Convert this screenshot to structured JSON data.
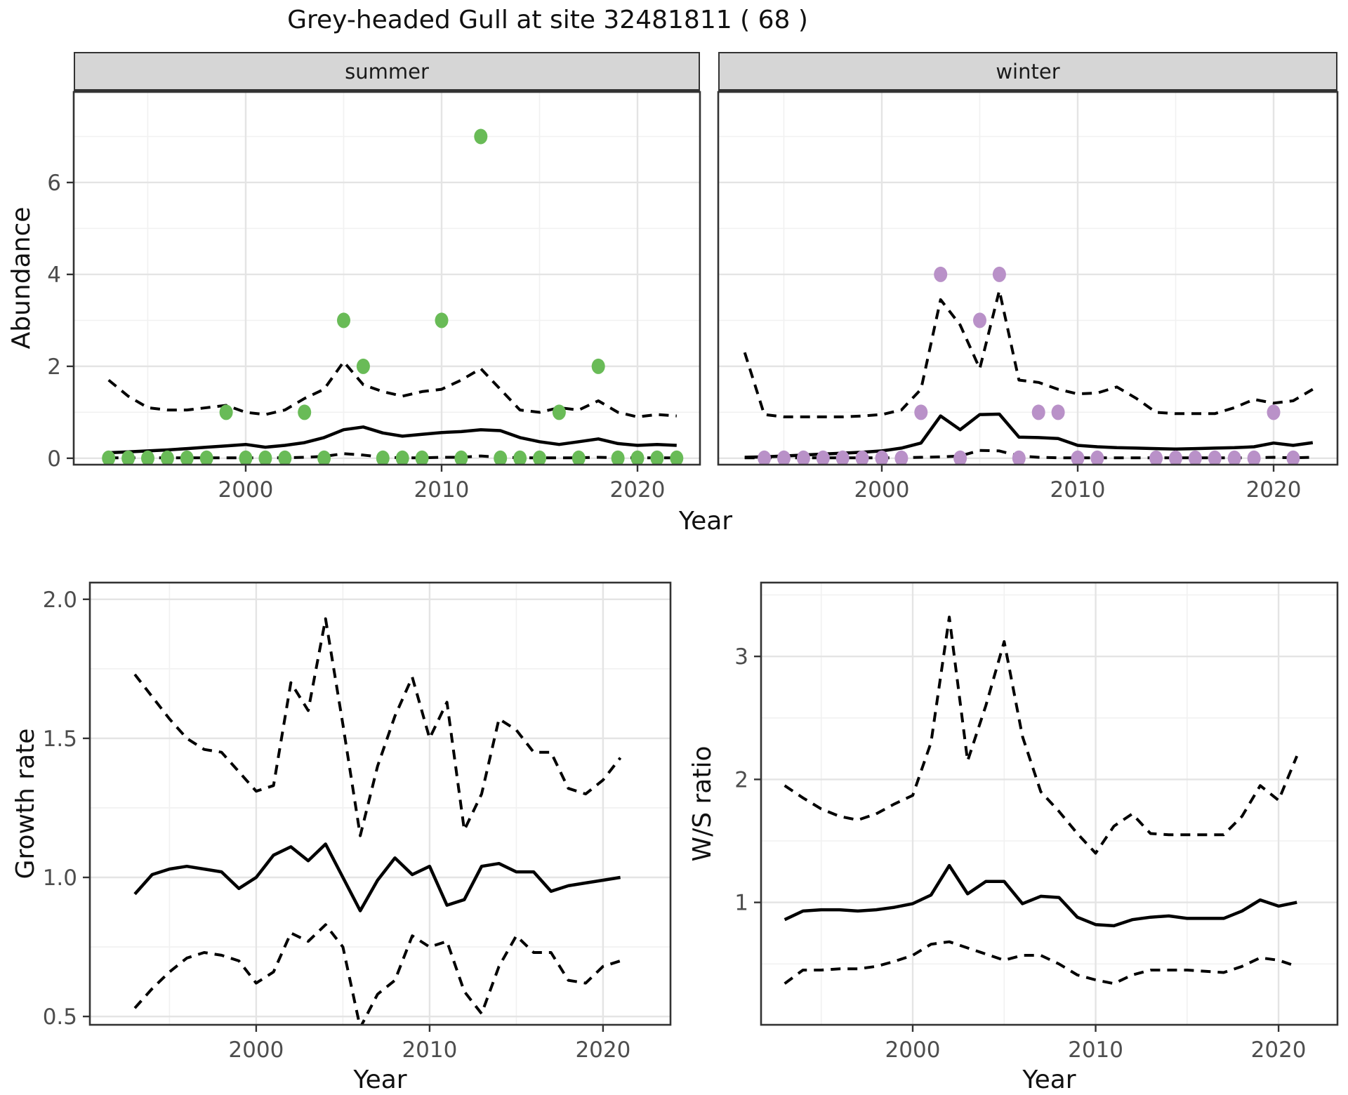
{
  "title": "Grey-headed Gull at site 32481811 ( 68 )",
  "colors": {
    "summer_point": "#69BB57",
    "winter_point": "#B991C8",
    "line": "#000000",
    "strip_bg": "#D6D6D6",
    "panel_border": "#333333",
    "grid_major": "#E4E4E4",
    "grid_minor": "#F1F1F1",
    "tick_text": "#4D4D4D"
  },
  "chart_data": [
    {
      "id": "abundance_summer",
      "type": "line",
      "facet_label": "summer",
      "xlabel": "Year",
      "ylabel": "Abundance",
      "xlim": [
        1991.22,
        2023.19
      ],
      "ylim": [
        -0.14,
        7.97
      ],
      "x_major_ticks": [
        2000,
        2010,
        2020
      ],
      "x_tick_labels": [
        "2000",
        "2010",
        "2020"
      ],
      "x_minor_ticks": [
        1995,
        2005,
        2015
      ],
      "y_major_ticks": [
        0,
        2,
        4,
        6
      ],
      "y_tick_labels": [
        "0",
        "2",
        "4",
        "6"
      ],
      "y_minor_ticks": [
        1,
        3,
        5,
        7
      ],
      "show_y_labels": true,
      "grid": true,
      "legend": "none",
      "x": [
        1993,
        1994,
        1995,
        1996,
        1997,
        1998,
        1999,
        2000,
        2001,
        2002,
        2003,
        2004,
        2005,
        2006,
        2007,
        2008,
        2009,
        2010,
        2011,
        2012,
        2013,
        2014,
        2015,
        2016,
        2017,
        2018,
        2019,
        2020,
        2021,
        2022
      ],
      "series": [
        {
          "name": "mean",
          "style": "solid",
          "values": [
            0.12,
            0.14,
            0.16,
            0.18,
            0.21,
            0.24,
            0.27,
            0.3,
            0.24,
            0.28,
            0.34,
            0.45,
            0.62,
            0.68,
            0.55,
            0.48,
            0.52,
            0.56,
            0.58,
            0.62,
            0.6,
            0.45,
            0.36,
            0.3,
            0.36,
            0.42,
            0.32,
            0.28,
            0.3,
            0.28
          ]
        },
        {
          "name": "upper_ci",
          "style": "dashed",
          "values": [
            1.7,
            1.35,
            1.1,
            1.05,
            1.05,
            1.1,
            1.15,
            1.0,
            0.95,
            1.05,
            1.3,
            1.5,
            2.1,
            1.6,
            1.45,
            1.35,
            1.45,
            1.5,
            1.7,
            1.95,
            1.5,
            1.05,
            1.0,
            1.1,
            1.05,
            1.25,
            1.0,
            0.9,
            0.95,
            0.92
          ]
        },
        {
          "name": "lower_ci",
          "style": "dashed",
          "values": [
            0.01,
            0.01,
            0.01,
            0.01,
            0.01,
            0.01,
            0.01,
            0.01,
            0.01,
            0.01,
            0.02,
            0.04,
            0.1,
            0.07,
            0.02,
            0.01,
            0.01,
            0.02,
            0.02,
            0.05,
            0.02,
            0.01,
            0.01,
            0.01,
            0.01,
            0.02,
            0.01,
            0.01,
            0.01,
            0.01
          ]
        }
      ],
      "points": {
        "color_key": "summer_point",
        "data": [
          [
            1993,
            0
          ],
          [
            1994,
            0
          ],
          [
            1995,
            0
          ],
          [
            1996,
            0
          ],
          [
            1997,
            0
          ],
          [
            1998,
            0
          ],
          [
            1999,
            1
          ],
          [
            2000,
            0
          ],
          [
            2001,
            0
          ],
          [
            2002,
            0
          ],
          [
            2003,
            1
          ],
          [
            2004,
            0
          ],
          [
            2005,
            3
          ],
          [
            2006,
            2
          ],
          [
            2007,
            0
          ],
          [
            2008,
            0
          ],
          [
            2009,
            0
          ],
          [
            2010,
            3
          ],
          [
            2011,
            0
          ],
          [
            2012,
            7
          ],
          [
            2013,
            0
          ],
          [
            2014,
            0
          ],
          [
            2015,
            0
          ],
          [
            2016,
            1
          ],
          [
            2017,
            0
          ],
          [
            2018,
            2
          ],
          [
            2019,
            0
          ],
          [
            2020,
            0
          ],
          [
            2021,
            0
          ],
          [
            2022,
            0
          ]
        ]
      }
    },
    {
      "id": "abundance_winter",
      "type": "line",
      "facet_label": "winter",
      "xlabel": "Year",
      "ylabel": "Abundance",
      "xlim": [
        1991.65,
        2023.26
      ],
      "ylim": [
        -0.14,
        7.97
      ],
      "x_major_ticks": [
        2000,
        2010,
        2020
      ],
      "x_tick_labels": [
        "2000",
        "2010",
        "2020"
      ],
      "x_minor_ticks": [
        1995,
        2005,
        2015
      ],
      "y_major_ticks": [
        0,
        2,
        4,
        6
      ],
      "y_tick_labels": [
        "0",
        "2",
        "4",
        "6"
      ],
      "y_minor_ticks": [
        1,
        3,
        5,
        7
      ],
      "show_y_labels": false,
      "grid": true,
      "legend": "none",
      "x": [
        1993,
        1994,
        1995,
        1996,
        1997,
        1998,
        1999,
        2000,
        2001,
        2002,
        2003,
        2004,
        2005,
        2006,
        2007,
        2008,
        2009,
        2010,
        2011,
        2012,
        2013,
        2014,
        2015,
        2016,
        2017,
        2018,
        2019,
        2020,
        2021,
        2022
      ],
      "series": [
        {
          "name": "mean",
          "style": "solid",
          "values": [
            0.02,
            0.03,
            0.05,
            0.07,
            0.09,
            0.11,
            0.13,
            0.16,
            0.22,
            0.33,
            0.92,
            0.62,
            0.95,
            0.96,
            0.46,
            0.45,
            0.43,
            0.28,
            0.25,
            0.23,
            0.22,
            0.21,
            0.2,
            0.21,
            0.22,
            0.23,
            0.25,
            0.33,
            0.28,
            0.34
          ]
        },
        {
          "name": "upper_ci",
          "style": "dashed",
          "values": [
            2.3,
            0.95,
            0.9,
            0.9,
            0.9,
            0.9,
            0.92,
            0.95,
            1.05,
            1.5,
            3.45,
            2.9,
            1.95,
            3.65,
            1.7,
            1.65,
            1.5,
            1.4,
            1.42,
            1.55,
            1.3,
            1.0,
            0.97,
            0.97,
            0.97,
            1.1,
            1.28,
            1.2,
            1.25,
            1.5
          ]
        },
        {
          "name": "lower_ci",
          "style": "dashed",
          "values": [
            0.01,
            0.01,
            0.01,
            0.01,
            0.01,
            0.01,
            0.01,
            0.01,
            0.01,
            0.02,
            0.03,
            0.05,
            0.17,
            0.16,
            0.05,
            0.02,
            0.01,
            0.01,
            0.01,
            0.01,
            0.01,
            0.01,
            0.01,
            0.01,
            0.01,
            0.01,
            0.01,
            0.02,
            0.01,
            0.02
          ]
        }
      ],
      "points": {
        "color_key": "winter_point",
        "data": [
          [
            1994,
            0
          ],
          [
            1995,
            0
          ],
          [
            1996,
            0
          ],
          [
            1997,
            0
          ],
          [
            1998,
            0
          ],
          [
            1999,
            0
          ],
          [
            2000,
            0
          ],
          [
            2001,
            0
          ],
          [
            2002,
            1
          ],
          [
            2003,
            4
          ],
          [
            2004,
            0
          ],
          [
            2005,
            3
          ],
          [
            2006,
            4
          ],
          [
            2007,
            0
          ],
          [
            2008,
            1
          ],
          [
            2009,
            1
          ],
          [
            2010,
            0
          ],
          [
            2011,
            0
          ],
          [
            2014,
            0
          ],
          [
            2015,
            0
          ],
          [
            2016,
            0
          ],
          [
            2017,
            0
          ],
          [
            2018,
            0
          ],
          [
            2019,
            0
          ],
          [
            2020,
            1
          ],
          [
            2021,
            0
          ]
        ]
      }
    },
    {
      "id": "growth_rate",
      "type": "line",
      "facet_label": "",
      "xlabel": "Year",
      "ylabel": "Growth rate",
      "xlim": [
        1990.41,
        2023.89
      ],
      "ylim": [
        0.47,
        2.06
      ],
      "x_major_ticks": [
        2000,
        2010,
        2020
      ],
      "x_tick_labels": [
        "2000",
        "2010",
        "2020"
      ],
      "x_minor_ticks": [
        1995,
        2005,
        2015
      ],
      "y_major_ticks": [
        0.5,
        1.0,
        1.5,
        2.0
      ],
      "y_tick_labels": [
        "0.5",
        "1.0",
        "1.5",
        "2.0"
      ],
      "y_minor_ticks": [
        0.75,
        1.25,
        1.75
      ],
      "show_y_labels": true,
      "grid": true,
      "legend": "none",
      "x": [
        1993,
        1994,
        1995,
        1996,
        1997,
        1998,
        1999,
        2000,
        2001,
        2002,
        2003,
        2004,
        2005,
        2006,
        2007,
        2008,
        2009,
        2010,
        2011,
        2012,
        2013,
        2014,
        2015,
        2016,
        2017,
        2018,
        2019,
        2020,
        2021
      ],
      "series": [
        {
          "name": "mean",
          "style": "solid",
          "values": [
            0.94,
            1.01,
            1.03,
            1.04,
            1.03,
            1.02,
            0.96,
            1.0,
            1.08,
            1.11,
            1.06,
            1.12,
            1.0,
            0.88,
            0.99,
            1.07,
            1.01,
            1.04,
            0.9,
            0.92,
            1.04,
            1.05,
            1.02,
            1.02,
            0.95,
            0.97,
            0.98,
            0.99,
            1.0
          ]
        },
        {
          "name": "upper_ci",
          "style": "dashed",
          "values": [
            1.73,
            1.65,
            1.57,
            1.5,
            1.46,
            1.45,
            1.38,
            1.31,
            1.33,
            1.7,
            1.6,
            1.93,
            1.55,
            1.15,
            1.4,
            1.58,
            1.72,
            1.5,
            1.63,
            1.17,
            1.3,
            1.57,
            1.53,
            1.45,
            1.45,
            1.32,
            1.3,
            1.35,
            1.43
          ]
        },
        {
          "name": "lower_ci",
          "style": "dashed",
          "values": [
            0.53,
            0.6,
            0.66,
            0.71,
            0.73,
            0.72,
            0.7,
            0.62,
            0.66,
            0.8,
            0.77,
            0.83,
            0.75,
            0.46,
            0.58,
            0.63,
            0.79,
            0.75,
            0.77,
            0.59,
            0.51,
            0.68,
            0.79,
            0.73,
            0.73,
            0.63,
            0.62,
            0.68,
            0.7
          ]
        }
      ],
      "points": {
        "color_key": "",
        "data": []
      }
    },
    {
      "id": "ws_ratio",
      "type": "line",
      "facet_label": "",
      "xlabel": "Year",
      "ylabel": "W/S ratio",
      "xlim": [
        1991.71,
        2023.22
      ],
      "ylim": [
        0.005,
        3.6
      ],
      "x_major_ticks": [
        2000,
        2010,
        2020
      ],
      "x_tick_labels": [
        "2000",
        "2010",
        "2020"
      ],
      "x_minor_ticks": [
        1995,
        2005,
        2015
      ],
      "y_major_ticks": [
        1,
        2,
        3
      ],
      "y_tick_labels": [
        "1",
        "2",
        "3"
      ],
      "y_minor_ticks": [
        0.5,
        1.5,
        2.5,
        3.5
      ],
      "show_y_labels": true,
      "grid": true,
      "legend": "none",
      "x": [
        1993,
        1994,
        1995,
        1996,
        1997,
        1998,
        1999,
        2000,
        2001,
        2002,
        2003,
        2004,
        2005,
        2006,
        2007,
        2008,
        2009,
        2010,
        2011,
        2012,
        2013,
        2014,
        2015,
        2016,
        2017,
        2018,
        2019,
        2020,
        2021
      ],
      "series": [
        {
          "name": "mean",
          "style": "solid",
          "values": [
            0.86,
            0.93,
            0.94,
            0.94,
            0.93,
            0.94,
            0.96,
            0.99,
            1.06,
            1.3,
            1.07,
            1.17,
            1.17,
            0.99,
            1.05,
            1.04,
            0.88,
            0.82,
            0.81,
            0.86,
            0.88,
            0.89,
            0.87,
            0.87,
            0.87,
            0.93,
            1.02,
            0.97,
            1.0
          ]
        },
        {
          "name": "upper_ci",
          "style": "dashed",
          "values": [
            1.95,
            1.85,
            1.76,
            1.7,
            1.67,
            1.72,
            1.8,
            1.87,
            2.3,
            3.32,
            2.15,
            2.6,
            3.12,
            2.35,
            1.9,
            1.74,
            1.56,
            1.4,
            1.62,
            1.72,
            1.56,
            1.55,
            1.55,
            1.55,
            1.55,
            1.7,
            1.95,
            1.83,
            2.19
          ]
        },
        {
          "name": "lower_ci",
          "style": "dashed",
          "values": [
            0.34,
            0.45,
            0.45,
            0.46,
            0.46,
            0.48,
            0.52,
            0.57,
            0.66,
            0.68,
            0.63,
            0.58,
            0.53,
            0.57,
            0.57,
            0.5,
            0.41,
            0.37,
            0.34,
            0.41,
            0.45,
            0.45,
            0.45,
            0.44,
            0.43,
            0.48,
            0.55,
            0.53,
            0.48
          ]
        }
      ],
      "points": {
        "color_key": "",
        "data": []
      }
    }
  ]
}
